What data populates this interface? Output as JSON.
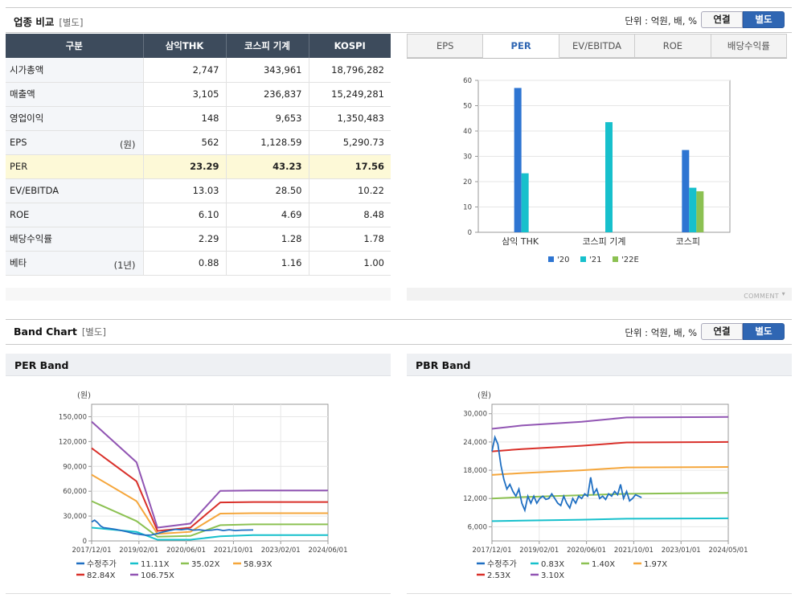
{
  "industry": {
    "title": "업종 비교",
    "subtitle": "[별도]",
    "unit": "단위 : 억원, 배, %",
    "toggle_consolidated": "연결",
    "toggle_separate": "별도",
    "columns": [
      "구분",
      "삼익THK",
      "코스피 기계",
      "KOSPI"
    ],
    "rows": [
      {
        "label": "시가총액",
        "note": "",
        "values": [
          "2,747",
          "343,961",
          "18,796,282"
        ]
      },
      {
        "label": "매출액",
        "note": "",
        "values": [
          "3,105",
          "236,837",
          "15,249,281"
        ]
      },
      {
        "label": "영업이익",
        "note": "",
        "values": [
          "148",
          "9,653",
          "1,350,483"
        ]
      },
      {
        "label": "EPS",
        "note": "(원)",
        "values": [
          "562",
          "1,128.59",
          "5,290.73"
        ]
      },
      {
        "label": "PER",
        "note": "",
        "values": [
          "23.29",
          "43.23",
          "17.56"
        ],
        "highlight": true
      },
      {
        "label": "EV/EBITDA",
        "note": "",
        "values": [
          "13.03",
          "28.50",
          "10.22"
        ]
      },
      {
        "label": "ROE",
        "note": "",
        "values": [
          "6.10",
          "4.69",
          "8.48"
        ]
      },
      {
        "label": "배당수익률",
        "note": "",
        "values": [
          "2.29",
          "1.28",
          "1.78"
        ]
      },
      {
        "label": "베타",
        "note": "(1년)",
        "values": [
          "0.88",
          "1.16",
          "1.00"
        ]
      }
    ],
    "tabs": [
      "EPS",
      "PER",
      "EV/EBITDA",
      "ROE",
      "배당수익률"
    ],
    "active_tab": "PER",
    "comment": "COMMENT"
  },
  "band": {
    "title": "Band Chart",
    "subtitle": "[별도]",
    "unit": "단위 : 억원, 배, %",
    "toggle_consolidated": "연결",
    "toggle_separate": "별도",
    "per_title": "PER Band",
    "pbr_title": "PBR Band"
  },
  "colors": {
    "blue": "#2e75d2",
    "teal": "#17c0cc",
    "green": "#8cc152",
    "orange": "#f5a63b",
    "red": "#d9302a",
    "purple": "#9155b3",
    "price": "#1f6fc2",
    "header_dark": "#3d4b5c",
    "accent": "#2f66b3"
  },
  "chart_data": [
    {
      "type": "bar",
      "categories": [
        "삼익 THK",
        "코스피 기계",
        "코스피"
      ],
      "series": [
        {
          "name": "'20",
          "values": [
            57,
            null,
            32.5
          ],
          "color": "#2e75d2"
        },
        {
          "name": "'21",
          "values": [
            23.3,
            43.5,
            17.6
          ],
          "color": "#17c0cc"
        },
        {
          "name": "'22E",
          "values": [
            null,
            null,
            16.2
          ],
          "color": "#8cc152"
        }
      ],
      "ylim": [
        0,
        60
      ],
      "yticks": [
        0,
        10,
        20,
        30,
        40,
        50,
        60
      ],
      "legend_position": "bottom"
    },
    {
      "type": "line",
      "title": "PER Band",
      "unit_label": "(원)",
      "ylim": [
        0,
        165000
      ],
      "yticks": [
        0,
        30000,
        60000,
        90000,
        120000,
        150000
      ],
      "ytick_labels": [
        "0",
        "30,000",
        "60,000",
        "90,000",
        "120,000",
        "150,000"
      ],
      "xticks": [
        "2017/12/01",
        "2019/02/01",
        "2020/06/01",
        "2021/10/01",
        "2023/02/01",
        "2024/06/01"
      ],
      "xrange": [
        0,
        79
      ],
      "series": [
        {
          "name": "수정주가",
          "color": "#1f6fc2",
          "type": "price",
          "points": [
            [
              0,
              23000
            ],
            [
              1,
              25000
            ],
            [
              2,
              22000
            ],
            [
              3,
              18000
            ],
            [
              4,
              16000
            ],
            [
              6,
              15000
            ],
            [
              8,
              14000
            ],
            [
              10,
              12500
            ],
            [
              12,
              11000
            ],
            [
              14,
              9000
            ],
            [
              16,
              8000
            ],
            [
              18,
              7000
            ],
            [
              20,
              7200
            ],
            [
              22,
              9000
            ],
            [
              24,
              11000
            ],
            [
              26,
              12500
            ],
            [
              28,
              14000
            ],
            [
              30,
              13500
            ],
            [
              32,
              14500
            ],
            [
              34,
              13000
            ],
            [
              36,
              13500
            ],
            [
              38,
              12500
            ],
            [
              40,
              13000
            ],
            [
              42,
              14000
            ],
            [
              44,
              12500
            ],
            [
              46,
              13500
            ],
            [
              48,
              12500
            ],
            [
              50,
              13000
            ],
            [
              54,
              13200
            ]
          ]
        },
        {
          "name": "11.11X",
          "color": "#17c0cc",
          "points": [
            [
              0,
              16000
            ],
            [
              15,
              11000
            ],
            [
              22,
              1500
            ],
            [
              33,
              1500
            ],
            [
              43,
              5500
            ],
            [
              54,
              7000
            ],
            [
              79,
              7000
            ]
          ]
        },
        {
          "name": "35.02X",
          "color": "#8cc152",
          "points": [
            [
              0,
              48000
            ],
            [
              15,
              24000
            ],
            [
              22,
              5000
            ],
            [
              33,
              6000
            ],
            [
              43,
              19000
            ],
            [
              54,
              20000
            ],
            [
              79,
              20000
            ]
          ]
        },
        {
          "name": "58.93X",
          "color": "#f5a63b",
          "points": [
            [
              0,
              80000
            ],
            [
              15,
              48000
            ],
            [
              22,
              8500
            ],
            [
              33,
              11000
            ],
            [
              43,
              33000
            ],
            [
              54,
              33500
            ],
            [
              79,
              33500
            ]
          ]
        },
        {
          "name": "82.84X",
          "color": "#d9302a",
          "points": [
            [
              0,
              112000
            ],
            [
              15,
              72000
            ],
            [
              22,
              12000
            ],
            [
              33,
              16000
            ],
            [
              43,
              46500
            ],
            [
              54,
              47000
            ],
            [
              79,
              47000
            ]
          ]
        },
        {
          "name": "106.75X",
          "color": "#9155b3",
          "points": [
            [
              0,
              144000
            ],
            [
              15,
              95000
            ],
            [
              22,
              16000
            ],
            [
              33,
              21000
            ],
            [
              43,
              60500
            ],
            [
              54,
              61000
            ],
            [
              79,
              61000
            ]
          ]
        }
      ],
      "legend_position": "bottom"
    },
    {
      "type": "line",
      "title": "PBR Band",
      "unit_label": "(원)",
      "ylim": [
        3000,
        32000
      ],
      "yticks": [
        6000,
        12000,
        18000,
        24000,
        30000
      ],
      "ytick_labels": [
        "6,000",
        "12,000",
        "18,000",
        "24,000",
        "30,000"
      ],
      "xticks": [
        "2017/12/01",
        "2019/02/01",
        "2020/06/01",
        "2021/10/01",
        "2023/01/01",
        "2024/05/01"
      ],
      "xrange": [
        0,
        79
      ],
      "series": [
        {
          "name": "수정주가",
          "color": "#1f6fc2",
          "type": "price",
          "points": [
            [
              0,
              22000
            ],
            [
              1,
              25000
            ],
            [
              2,
              23500
            ],
            [
              3,
              19000
            ],
            [
              4,
              16000
            ],
            [
              5,
              14000
            ],
            [
              6,
              15000
            ],
            [
              7,
              13500
            ],
            [
              8,
              12500
            ],
            [
              9,
              14000
            ],
            [
              10,
              11000
            ],
            [
              11,
              9500
            ],
            [
              12,
              12500
            ],
            [
              13,
              11000
            ],
            [
              14,
              12500
            ],
            [
              15,
              11000
            ],
            [
              16,
              12000
            ],
            [
              17,
              12500
            ],
            [
              18,
              11800
            ],
            [
              19,
              12000
            ],
            [
              20,
              13000
            ],
            [
              21,
              12000
            ],
            [
              22,
              11000
            ],
            [
              23,
              10500
            ],
            [
              24,
              12500
            ],
            [
              25,
              11000
            ],
            [
              26,
              10000
            ],
            [
              27,
              12000
            ],
            [
              28,
              11000
            ],
            [
              29,
              12500
            ],
            [
              30,
              12000
            ],
            [
              31,
              13000
            ],
            [
              32,
              12500
            ],
            [
              33,
              16500
            ],
            [
              34,
              13000
            ],
            [
              35,
              14000
            ],
            [
              36,
              12000
            ],
            [
              37,
              12500
            ],
            [
              38,
              11800
            ],
            [
              39,
              13000
            ],
            [
              40,
              12500
            ],
            [
              41,
              13500
            ],
            [
              42,
              12800
            ],
            [
              43,
              15000
            ],
            [
              44,
              12000
            ],
            [
              45,
              13500
            ],
            [
              46,
              11500
            ],
            [
              47,
              12000
            ],
            [
              48,
              12800
            ],
            [
              49,
              12500
            ],
            [
              50,
              12200
            ]
          ]
        },
        {
          "name": "0.83X",
          "color": "#17c0cc",
          "points": [
            [
              0,
              7200
            ],
            [
              10,
              7300
            ],
            [
              30,
              7500
            ],
            [
              45,
              7700
            ],
            [
              79,
              7800
            ]
          ]
        },
        {
          "name": "1.40X",
          "color": "#8cc152",
          "points": [
            [
              0,
              12000
            ],
            [
              10,
              12300
            ],
            [
              30,
              12700
            ],
            [
              45,
              13000
            ],
            [
              79,
              13200
            ]
          ]
        },
        {
          "name": "1.97X",
          "color": "#f5a63b",
          "points": [
            [
              0,
              17000
            ],
            [
              10,
              17400
            ],
            [
              30,
              18000
            ],
            [
              45,
              18600
            ],
            [
              79,
              18700
            ]
          ]
        },
        {
          "name": "2.53X",
          "color": "#d9302a",
          "points": [
            [
              0,
              22000
            ],
            [
              10,
              22500
            ],
            [
              30,
              23200
            ],
            [
              45,
              23900
            ],
            [
              79,
              24000
            ]
          ]
        },
        {
          "name": "3.10X",
          "color": "#9155b3",
          "points": [
            [
              0,
              26800
            ],
            [
              10,
              27500
            ],
            [
              30,
              28300
            ],
            [
              45,
              29200
            ],
            [
              79,
              29300
            ]
          ]
        }
      ],
      "legend_position": "bottom"
    }
  ]
}
